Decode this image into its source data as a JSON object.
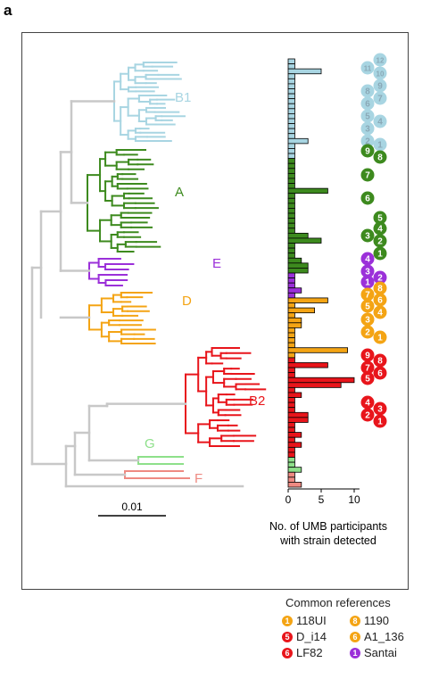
{
  "panel_label": "a",
  "colors": {
    "B1": "#a8d5e2",
    "A": "#3d8a1e",
    "E": "#9b30d9",
    "D": "#f4a414",
    "B2": "#e8151b",
    "G": "#8ee08a",
    "F": "#ee8a82",
    "backbone": "#c8c8c8",
    "B2_dark": "#d10c12"
  },
  "clade_labels": [
    {
      "label": "B1",
      "key": "B1"
    },
    {
      "label": "A",
      "key": "A"
    },
    {
      "label": "E",
      "key": "E"
    },
    {
      "label": "D",
      "key": "D"
    },
    {
      "label": "B2",
      "key": "B2"
    },
    {
      "label": "G",
      "key": "G"
    },
    {
      "label": "F",
      "key": "F"
    }
  ],
  "scale_bar_label": "0.01",
  "chart_data": {
    "type": "bar",
    "orientation": "horizontal",
    "xlabel": "No. of UMB participants\nwith strain detected",
    "xticks": [
      0,
      5,
      10
    ],
    "xlim": [
      0,
      12
    ],
    "clades": [
      "B1",
      "B1",
      "B1",
      "B1",
      "B1",
      "B1",
      "B1",
      "B1",
      "B1",
      "B1",
      "B1",
      "B1",
      "B1",
      "B1",
      "B1",
      "B1",
      "B1",
      "B1",
      "B1",
      "B1",
      "A",
      "A",
      "A",
      "A",
      "A",
      "A",
      "A",
      "A",
      "A",
      "A",
      "A",
      "A",
      "A",
      "A",
      "A",
      "A",
      "A",
      "A",
      "A",
      "A",
      "A",
      "A",
      "A",
      "E",
      "E",
      "E",
      "E",
      "E",
      "D",
      "D",
      "D",
      "D",
      "D",
      "D",
      "D",
      "D",
      "D",
      "D",
      "D",
      "D",
      "B2",
      "B2",
      "B2",
      "B2",
      "B2",
      "B2",
      "B2",
      "B2",
      "B2",
      "B2",
      "B2",
      "B2",
      "B2",
      "B2",
      "B2",
      "B2",
      "B2",
      "B2",
      "B2",
      "B2",
      "G",
      "G",
      "G",
      "F",
      "F",
      "F"
    ],
    "values": [
      1,
      1,
      5,
      1,
      1,
      1,
      1,
      1,
      1,
      1,
      1,
      1,
      1,
      1,
      1,
      1,
      3,
      1,
      1,
      1,
      1,
      1,
      1,
      1,
      1,
      1,
      6,
      1,
      1,
      1,
      1,
      1,
      1,
      1,
      1,
      3,
      5,
      1,
      1,
      1,
      2,
      3,
      3,
      1,
      1,
      1,
      2,
      1,
      6,
      1,
      4,
      1,
      2,
      2,
      1,
      1,
      1,
      1,
      9,
      1,
      1,
      6,
      1,
      1,
      10,
      8,
      1,
      2,
      1,
      1,
      1,
      3,
      3,
      1,
      1,
      2,
      1,
      2,
      1,
      1,
      1,
      1,
      2,
      1,
      1,
      2
    ]
  },
  "reference_markers": [
    {
      "n": "12",
      "clade": "B1"
    },
    {
      "n": "11",
      "clade": "B1"
    },
    {
      "n": "10",
      "clade": "B1"
    },
    {
      "n": "9",
      "clade": "B1"
    },
    {
      "n": "8",
      "clade": "B1"
    },
    {
      "n": "7",
      "clade": "B1"
    },
    {
      "n": "6",
      "clade": "B1"
    },
    {
      "n": "5",
      "clade": "B1"
    },
    {
      "n": "4",
      "clade": "B1"
    },
    {
      "n": "3",
      "clade": "B1"
    },
    {
      "n": "2",
      "clade": "B1"
    },
    {
      "n": "1",
      "clade": "B1"
    },
    {
      "n": "9",
      "clade": "A"
    },
    {
      "n": "8",
      "clade": "A"
    },
    {
      "n": "7",
      "clade": "A"
    },
    {
      "n": "6",
      "clade": "A"
    },
    {
      "n": "5",
      "clade": "A"
    },
    {
      "n": "4",
      "clade": "A"
    },
    {
      "n": "3",
      "clade": "A"
    },
    {
      "n": "2",
      "clade": "A"
    },
    {
      "n": "1",
      "clade": "A"
    },
    {
      "n": "4",
      "clade": "E"
    },
    {
      "n": "3",
      "clade": "E"
    },
    {
      "n": "2",
      "clade": "E"
    },
    {
      "n": "1",
      "clade": "E"
    },
    {
      "n": "8",
      "clade": "D"
    },
    {
      "n": "7",
      "clade": "D"
    },
    {
      "n": "6",
      "clade": "D"
    },
    {
      "n": "5",
      "clade": "D"
    },
    {
      "n": "4",
      "clade": "D"
    },
    {
      "n": "3",
      "clade": "D"
    },
    {
      "n": "2",
      "clade": "D"
    },
    {
      "n": "1",
      "clade": "D"
    },
    {
      "n": "9",
      "clade": "B2"
    },
    {
      "n": "8",
      "clade": "B2"
    },
    {
      "n": "7",
      "clade": "B2"
    },
    {
      "n": "6",
      "clade": "B2"
    },
    {
      "n": "5",
      "clade": "B2"
    },
    {
      "n": "4",
      "clade": "B2"
    },
    {
      "n": "3",
      "clade": "B2"
    },
    {
      "n": "2",
      "clade": "B2"
    },
    {
      "n": "1",
      "clade": "B2"
    }
  ],
  "legend": {
    "title": "Common references",
    "items": [
      {
        "n": "1",
        "label": "118UI",
        "clade": "D"
      },
      {
        "n": "8",
        "label": "1190",
        "clade": "D"
      },
      {
        "n": "5",
        "label": "D_i14",
        "clade": "B2"
      },
      {
        "n": "6",
        "label": "A1_136",
        "clade": "D"
      },
      {
        "n": "6",
        "label": "LF82",
        "clade": "B2"
      },
      {
        "n": "1",
        "label": "Santai",
        "clade": "E"
      }
    ]
  }
}
